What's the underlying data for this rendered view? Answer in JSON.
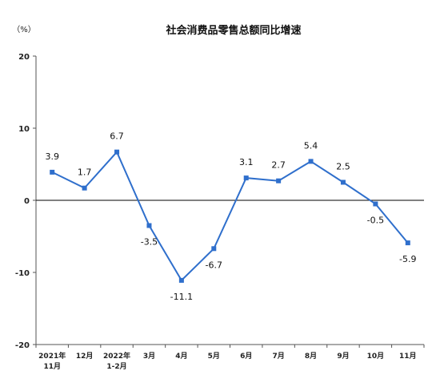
{
  "chart_data": {
    "type": "line",
    "title": "社会消费品零售总额同比增速",
    "unit_label": "（%）",
    "categories": [
      [
        "2021年",
        "11月"
      ],
      [
        "12月"
      ],
      [
        "2022年",
        "1-2月"
      ],
      [
        "3月"
      ],
      [
        "4月"
      ],
      [
        "5月"
      ],
      [
        "6月"
      ],
      [
        "7月"
      ],
      [
        "8月"
      ],
      [
        "9月"
      ],
      [
        "10月"
      ],
      [
        "11月"
      ]
    ],
    "series": [
      {
        "values": [
          3.9,
          1.7,
          6.7,
          -3.5,
          -11.1,
          -6.7,
          3.1,
          2.7,
          5.4,
          2.5,
          -0.5,
          -5.9
        ]
      }
    ],
    "ylim": [
      -20,
      20
    ],
    "yticks": [
      20,
      10,
      0,
      -10,
      -20
    ],
    "data_labels": [
      "3.9",
      "1.7",
      "6.7",
      "-3.5",
      "-11.1",
      "-6.7",
      "3.1",
      "2.7",
      "5.4",
      "2.5",
      "-0.5",
      "-5.9"
    ],
    "grid": false,
    "colors": {
      "line": "#2f6fcc",
      "marker": "#2f6fcc",
      "axis": "#555555",
      "zero_line": "#000000"
    }
  }
}
